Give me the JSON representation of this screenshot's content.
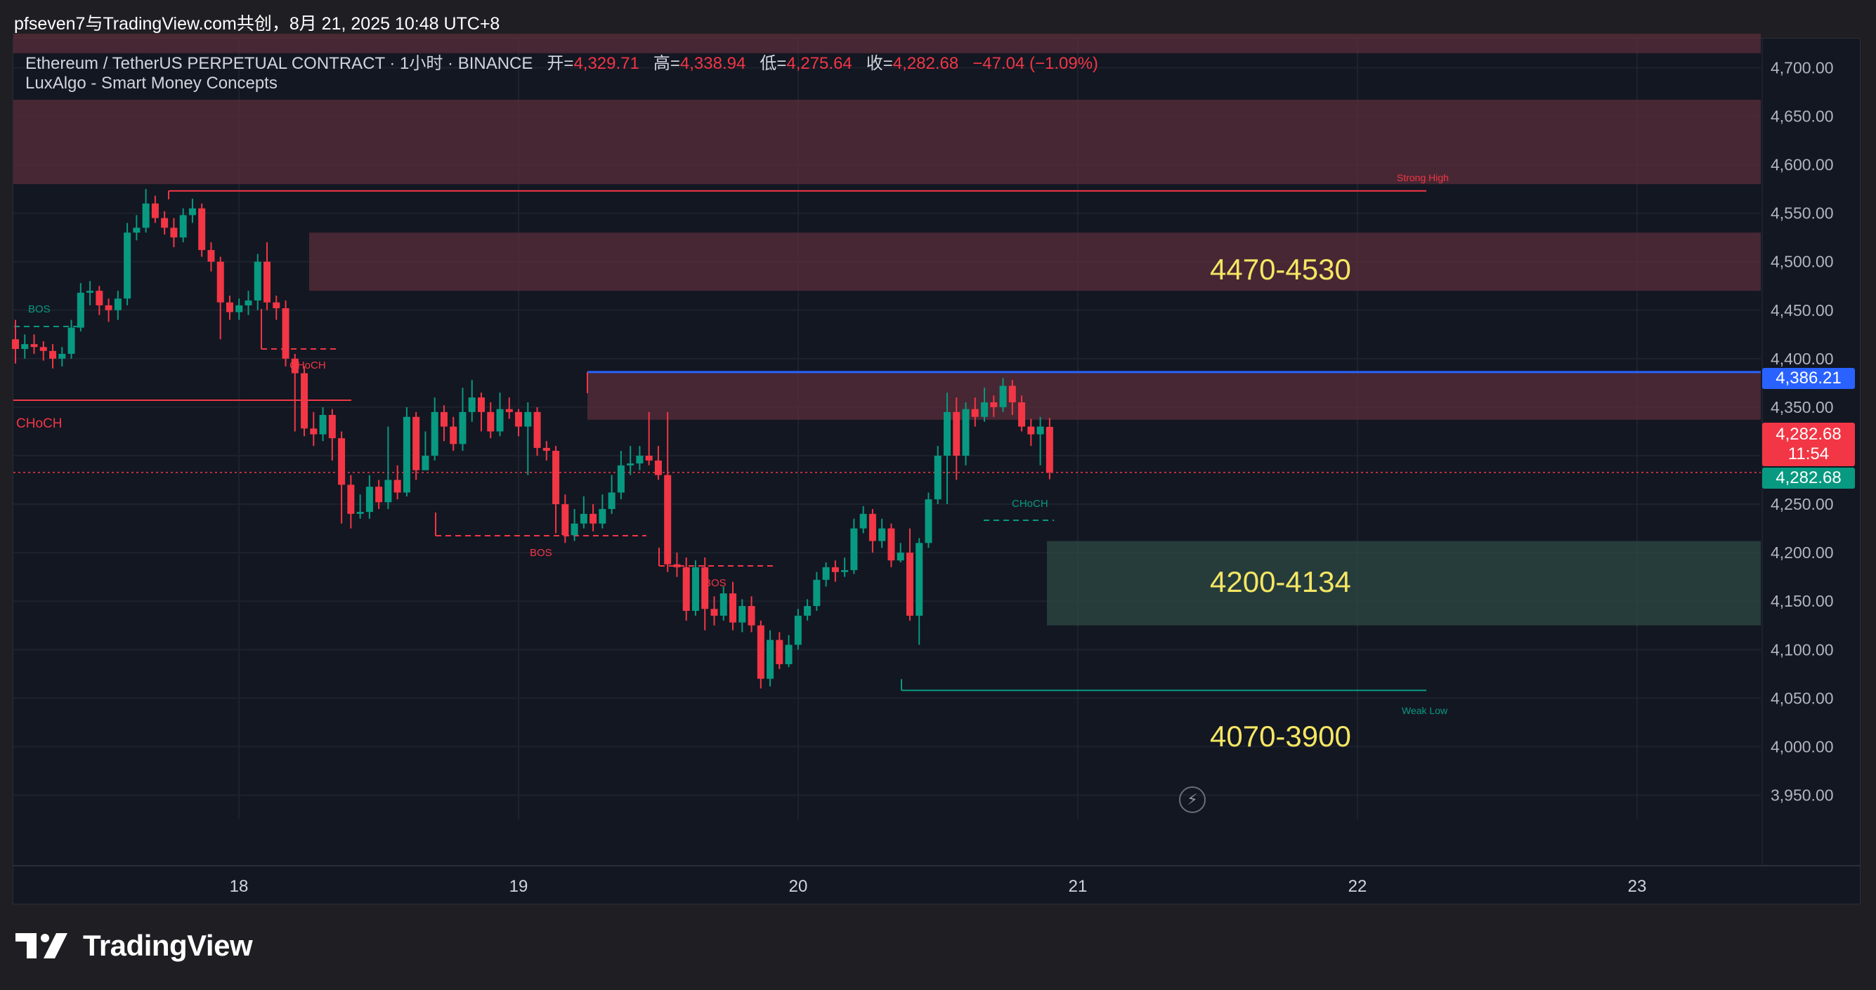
{
  "header": {
    "title": "pfseven7与TradingView.com共创，8月 21, 2025 10:48 UTC+8"
  },
  "legend": {
    "symbol": "Ethereum / TetherUS PERPETUAL CONTRACT · 1小时 · BINANCE",
    "open_label": "开=",
    "open": "4,329.71",
    "high_label": "高=",
    "high": "4,338.94",
    "low_label": "低=",
    "low": "4,275.64",
    "close_label": "收=",
    "close": "4,282.68",
    "change": "−47.04 (−1.09%)",
    "indicator": "LuxAlgo - Smart Money Concepts"
  },
  "zones": {
    "upper": "4470-4530",
    "middle": "4200-4134",
    "lower": "4070-3900"
  },
  "annotations": {
    "strong_high": "Strong High",
    "weak_low": "Weak Low",
    "choch_left": "CHoCH",
    "choch_mid": "CHoCH",
    "choch_green": "CHoCH",
    "bos_left": "BOS",
    "bos_1": "BOS",
    "bos_2": "BOS"
  },
  "price_tags": {
    "level_blue": "4,386.21",
    "last_price": "4,282.68",
    "countdown": "11:54",
    "green_tag": "4,282.68"
  },
  "footer": {
    "brand": "TradingView"
  },
  "colors": {
    "bull": "#089981",
    "bear": "#f23645",
    "supply_zone": "#5a2e3a",
    "demand_zone": "#2d4a44",
    "blue_line": "#2962ff",
    "zone_text": "#f5e663"
  },
  "chart_data": {
    "type": "candlestick",
    "symbol": "Ethereum / TetherUS PERPETUAL CONTRACT",
    "interval": "1小时",
    "y_ticks": [
      3950,
      4000,
      4050,
      4100,
      4150,
      4200,
      4250,
      4300,
      4350,
      4400,
      4450,
      4500,
      4550,
      4600,
      4650,
      4700
    ],
    "y_tick_labels": [
      "3,950.00",
      "4,000.00",
      "4,050.00",
      "4,100.00",
      "4,150.00",
      "4,200.00",
      "4,250.00",
      "4,300.00",
      "4,350.00",
      "4,400.00",
      "4,450.00",
      "4,500.00",
      "4,550.00",
      "4,600.00",
      "4,650.00",
      "4,700.00"
    ],
    "ylim": [
      3925,
      4730
    ],
    "x_tick_labels": [
      "18",
      "19",
      "20",
      "21",
      "22",
      "23"
    ],
    "grid": true,
    "candles": [
      [
        4420,
        4410,
        4440,
        4395
      ],
      [
        4410,
        4415,
        4425,
        4400
      ],
      [
        4415,
        4412,
        4425,
        4405
      ],
      [
        4412,
        4408,
        4418,
        4398
      ],
      [
        4408,
        4400,
        4415,
        4390
      ],
      [
        4400,
        4405,
        4412,
        4392
      ],
      [
        4405,
        4432,
        4440,
        4400
      ],
      [
        4432,
        4468,
        4478,
        4428
      ],
      [
        4468,
        4470,
        4480,
        4455
      ],
      [
        4470,
        4455,
        4475,
        4445
      ],
      [
        4455,
        4450,
        4462,
        4438
      ],
      [
        4450,
        4462,
        4470,
        4440
      ],
      [
        4462,
        4530,
        4540,
        4455
      ],
      [
        4530,
        4535,
        4548,
        4522
      ],
      [
        4535,
        4560,
        4575,
        4530
      ],
      [
        4560,
        4545,
        4568,
        4540
      ],
      [
        4545,
        4535,
        4552,
        4528
      ],
      [
        4535,
        4525,
        4545,
        4515
      ],
      [
        4525,
        4548,
        4555,
        4520
      ],
      [
        4548,
        4555,
        4565,
        4540
      ],
      [
        4555,
        4512,
        4560,
        4505
      ],
      [
        4512,
        4500,
        4520,
        4490
      ],
      [
        4500,
        4458,
        4505,
        4420
      ],
      [
        4458,
        4448,
        4465,
        4440
      ],
      [
        4448,
        4455,
        4462,
        4440
      ],
      [
        4455,
        4460,
        4470,
        4445
      ],
      [
        4460,
        4500,
        4508,
        4450
      ],
      [
        4500,
        4458,
        4520,
        4450
      ],
      [
        4458,
        4452,
        4465,
        4440
      ],
      [
        4452,
        4400,
        4460,
        4392
      ],
      [
        4400,
        4385,
        4405,
        4325
      ],
      [
        4385,
        4328,
        4392,
        4320
      ],
      [
        4328,
        4322,
        4345,
        4310
      ],
      [
        4322,
        4342,
        4350,
        4315
      ],
      [
        4342,
        4318,
        4348,
        4295
      ],
      [
        4318,
        4270,
        4325,
        4230
      ],
      [
        4270,
        4240,
        4280,
        4225
      ],
      [
        4240,
        4242,
        4260,
        4235
      ],
      [
        4242,
        4268,
        4280,
        4235
      ],
      [
        4268,
        4252,
        4275,
        4245
      ],
      [
        4252,
        4275,
        4330,
        4245
      ],
      [
        4275,
        4262,
        4290,
        4255
      ],
      [
        4262,
        4340,
        4350,
        4258
      ],
      [
        4340,
        4285,
        4345,
        4275
      ],
      [
        4285,
        4300,
        4325,
        4290
      ],
      [
        4300,
        4345,
        4360,
        4295
      ],
      [
        4345,
        4330,
        4352,
        4315
      ],
      [
        4330,
        4312,
        4340,
        4305
      ],
      [
        4312,
        4345,
        4370,
        4305
      ],
      [
        4345,
        4360,
        4378,
        4335
      ],
      [
        4360,
        4345,
        4365,
        4325
      ],
      [
        4345,
        4325,
        4355,
        4318
      ],
      [
        4325,
        4348,
        4365,
        4320
      ],
      [
        4348,
        4345,
        4360,
        4338
      ],
      [
        4345,
        4330,
        4348,
        4320
      ],
      [
        4330,
        4345,
        4355,
        4280
      ],
      [
        4345,
        4308,
        4350,
        4300
      ],
      [
        4308,
        4305,
        4315,
        4295
      ],
      [
        4305,
        4250,
        4310,
        4220
      ],
      [
        4250,
        4218,
        4260,
        4210
      ],
      [
        4218,
        4230,
        4245,
        4212
      ],
      [
        4230,
        4240,
        4258,
        4225
      ],
      [
        4240,
        4230,
        4250,
        4222
      ],
      [
        4230,
        4245,
        4260,
        4225
      ],
      [
        4245,
        4262,
        4280,
        4240
      ],
      [
        4262,
        4290,
        4305,
        4255
      ],
      [
        4290,
        4292,
        4310,
        4280
      ],
      [
        4292,
        4300,
        4310,
        4285
      ],
      [
        4300,
        4295,
        4345,
        4290
      ],
      [
        4295,
        4280,
        4310,
        4275
      ],
      [
        4280,
        4188,
        4345,
        4180
      ],
      [
        4188,
        4185,
        4200,
        4175
      ],
      [
        4185,
        4140,
        4195,
        4130
      ],
      [
        4140,
        4185,
        4192,
        4135
      ],
      [
        4185,
        4142,
        4195,
        4120
      ],
      [
        4142,
        4135,
        4155,
        4125
      ],
      [
        4135,
        4158,
        4165,
        4130
      ],
      [
        4158,
        4128,
        4170,
        4120
      ],
      [
        4128,
        4145,
        4152,
        4118
      ],
      [
        4145,
        4125,
        4155,
        4118
      ],
      [
        4125,
        4070,
        4130,
        4060
      ],
      [
        4070,
        4110,
        4120,
        4062
      ],
      [
        4110,
        4085,
        4118,
        4080
      ],
      [
        4085,
        4105,
        4115,
        4082
      ],
      [
        4105,
        4135,
        4142,
        4100
      ],
      [
        4135,
        4145,
        4152,
        4130
      ],
      [
        4145,
        4172,
        4180,
        4140
      ],
      [
        4172,
        4185,
        4190,
        4165
      ],
      [
        4185,
        4180,
        4192,
        4170
      ],
      [
        4180,
        4182,
        4195,
        4175
      ],
      [
        4182,
        4225,
        4235,
        4178
      ],
      [
        4225,
        4240,
        4248,
        4220
      ],
      [
        4240,
        4212,
        4245,
        4200
      ],
      [
        4212,
        4225,
        4235,
        4205
      ],
      [
        4225,
        4192,
        4230,
        4185
      ],
      [
        4192,
        4200,
        4210,
        4190
      ],
      [
        4200,
        4135,
        4225,
        4130
      ],
      [
        4135,
        4210,
        4215,
        4105
      ],
      [
        4210,
        4255,
        4262,
        4205
      ],
      [
        4255,
        4300,
        4310,
        4250
      ],
      [
        4300,
        4345,
        4365,
        4250
      ],
      [
        4345,
        4300,
        4360,
        4275
      ],
      [
        4300,
        4348,
        4355,
        4290
      ],
      [
        4348,
        4340,
        4360,
        4330
      ],
      [
        4340,
        4355,
        4370,
        4335
      ],
      [
        4355,
        4350,
        4362,
        4340
      ],
      [
        4350,
        4372,
        4380,
        4345
      ],
      [
        4372,
        4355,
        4378,
        4342
      ],
      [
        4355,
        4330,
        4362,
        4325
      ],
      [
        4330,
        4322,
        4338,
        4310
      ],
      [
        4322,
        4330,
        4340,
        4290
      ],
      [
        4329.71,
        4282.68,
        4338.94,
        4275.64
      ]
    ],
    "levels": {
      "strong_high": 4573,
      "weak_low": 4058,
      "blue_line": 4386.21,
      "last_price": 4282.68
    },
    "zones": [
      {
        "from": 4580,
        "to": 4667,
        "kind": "supply"
      },
      {
        "from": 4470,
        "to": 4530,
        "kind": "supply"
      },
      {
        "from": 4337,
        "to": 4386,
        "kind": "supply"
      },
      {
        "from": 4125,
        "to": 4212,
        "kind": "demand"
      },
      {
        "from": 4715,
        "to": 4735,
        "kind": "supply"
      }
    ]
  }
}
